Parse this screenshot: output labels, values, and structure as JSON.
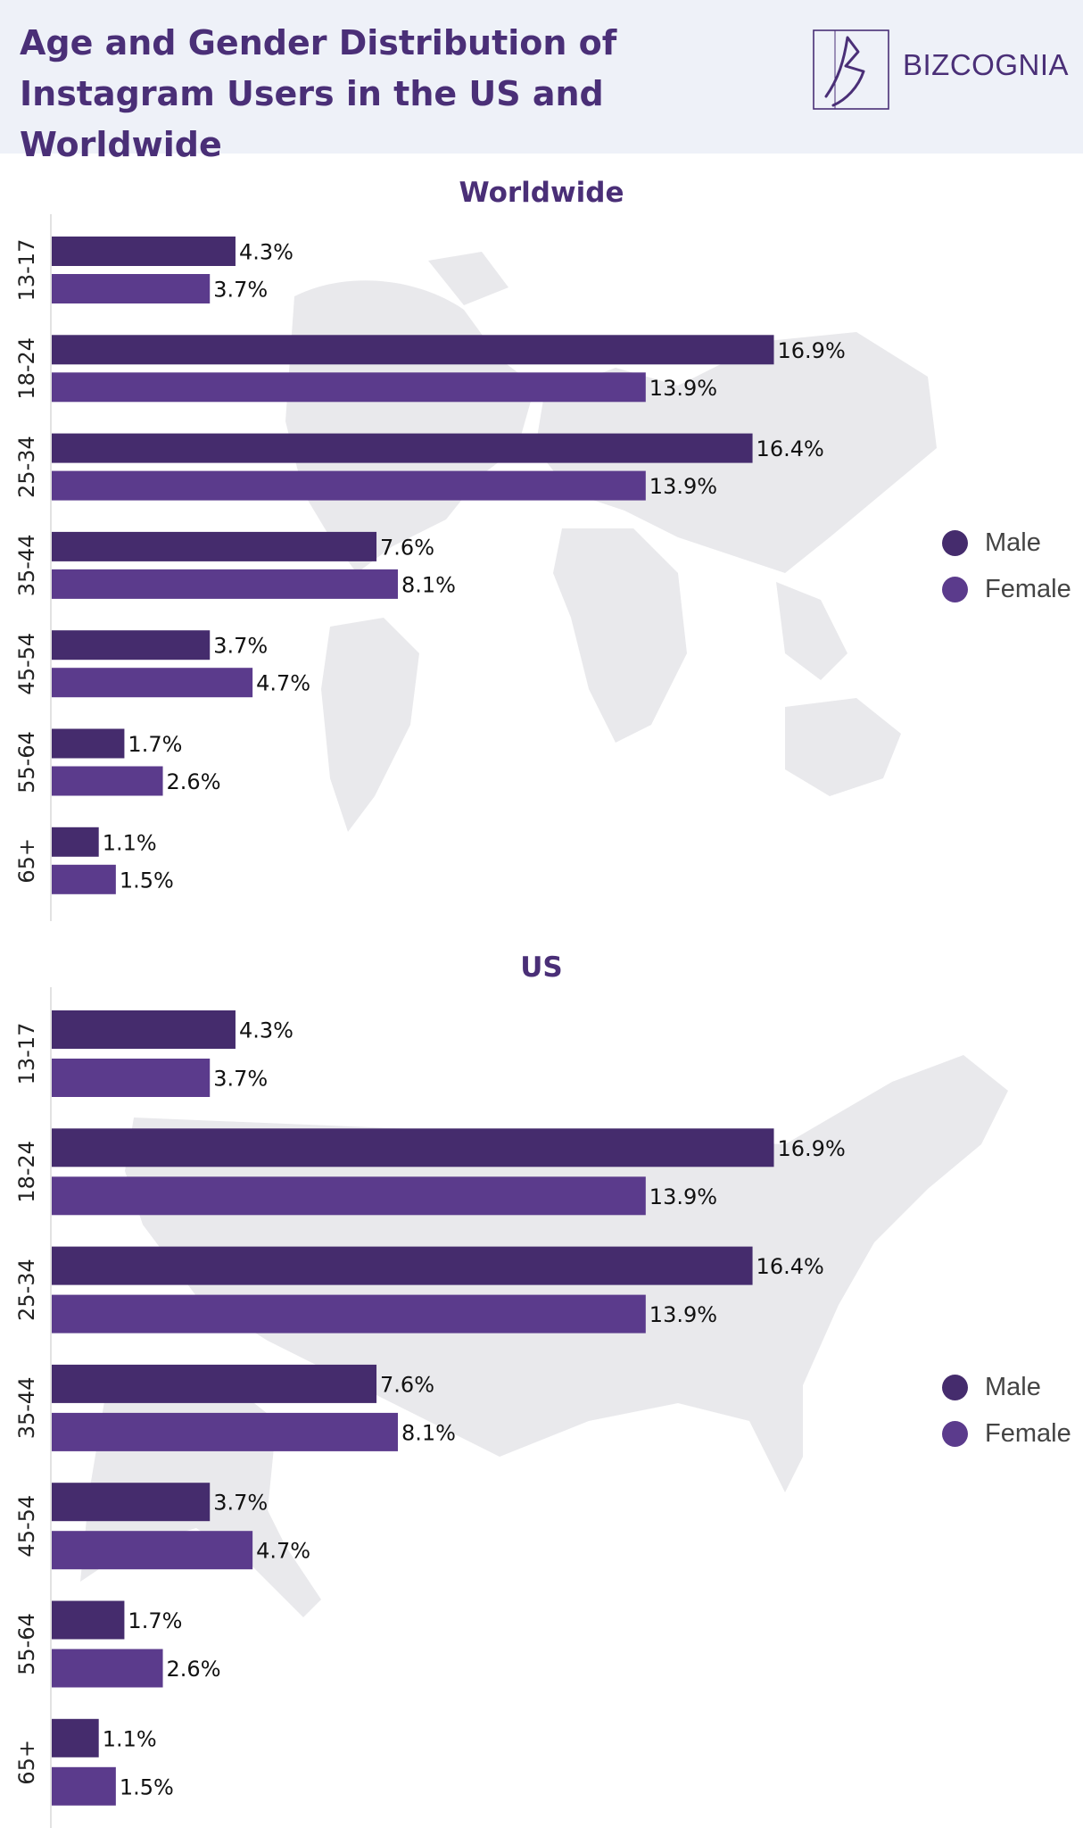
{
  "header": {
    "title_line1": "Age and Gender Distribution of",
    "title_line2": "Instagram Users in the US and Worldwide",
    "brand": "BIZCOGNIA"
  },
  "colors": {
    "male": "#452c6d",
    "female": "#5b3b8c",
    "title": "#4a2f77",
    "header_bg": "#eef1f8",
    "map": "#e9e9ec"
  },
  "legend": {
    "male_label": "Male",
    "female_label": "Female"
  },
  "chart_data": [
    {
      "type": "bar",
      "orientation": "horizontal",
      "title": "Worldwide",
      "background": "world-map",
      "categories": [
        "13-17",
        "18-24",
        "25-34",
        "35-44",
        "45-54",
        "55-64",
        "65+"
      ],
      "series": [
        {
          "name": "Male",
          "values": [
            4.3,
            16.9,
            16.4,
            7.6,
            3.7,
            1.7,
            1.1
          ]
        },
        {
          "name": "Female",
          "values": [
            3.7,
            13.9,
            13.9,
            8.1,
            4.7,
            2.6,
            1.5
          ]
        }
      ],
      "value_suffix": "%",
      "legend_position": "right",
      "grid": false
    },
    {
      "type": "bar",
      "orientation": "horizontal",
      "title": "US",
      "background": "us-map",
      "categories": [
        "13-17",
        "18-24",
        "25-34",
        "35-44",
        "45-54",
        "55-64",
        "65+"
      ],
      "series": [
        {
          "name": "Male",
          "values": [
            4.3,
            16.9,
            16.4,
            7.6,
            3.7,
            1.7,
            1.1
          ]
        },
        {
          "name": "Female",
          "values": [
            3.7,
            13.9,
            13.9,
            8.1,
            4.7,
            2.6,
            1.5
          ]
        }
      ],
      "value_suffix": "%",
      "legend_position": "right",
      "grid": false
    }
  ]
}
